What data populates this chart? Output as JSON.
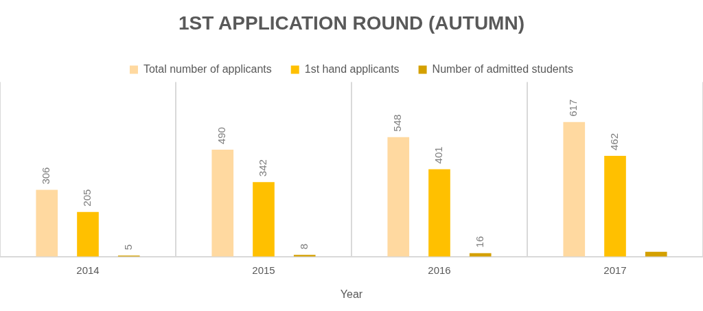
{
  "chart_data": {
    "type": "bar",
    "title": "1ST APPLICATION ROUND (AUTUMN)",
    "xlabel": "Year",
    "categories": [
      "2014",
      "2015",
      "2016",
      "2017"
    ],
    "series": [
      {
        "name": "Total number of applicants",
        "color": "#ffd9a0",
        "values": [
          306,
          490,
          548,
          617
        ],
        "value_labels": [
          "306",
          "490",
          "548",
          "617"
        ]
      },
      {
        "name": "1st hand applicants",
        "color": "#ffc000",
        "values": [
          205,
          342,
          401,
          462
        ],
        "value_labels": [
          "205",
          "342",
          "401",
          "462"
        ]
      },
      {
        "name": "Number of admitted students",
        "color": "#d4a000",
        "values": [
          5,
          8,
          16,
          22
        ],
        "value_labels": [
          "5",
          "8",
          "16",
          null
        ]
      }
    ],
    "grid": "x",
    "legend": "top",
    "tick_labels": "x"
  }
}
